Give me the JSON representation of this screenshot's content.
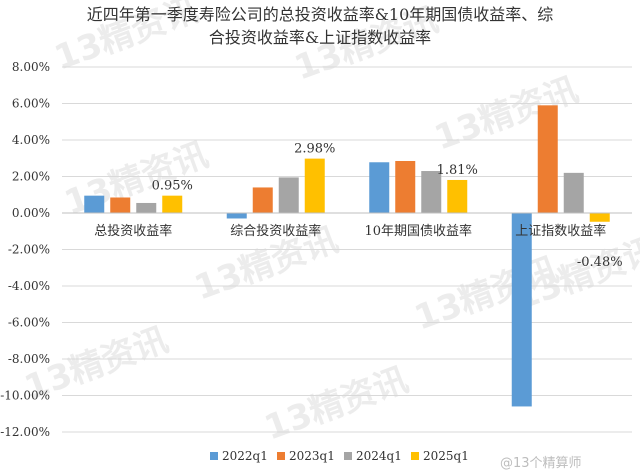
{
  "chart_data": {
    "type": "bar",
    "title": "近四年第一季度寿险公司的总投资收益率&10年期国债收益率、综合投资收益率&上证指数收益率",
    "title_lines": [
      "近四年第一季度寿险公司的总投资收益率&10年期国债收益率、综",
      "合投资收益率&上证指数收益率"
    ],
    "categories": [
      "总投资收益率",
      "综合投资收益率",
      "10年期国债收益率",
      "上证指数收益率"
    ],
    "series": [
      {
        "name": "2022q1",
        "color": "#5b9bd5",
        "values": [
          0.95,
          -0.3,
          2.78,
          -10.6
        ]
      },
      {
        "name": "2023q1",
        "color": "#ed7d31",
        "values": [
          0.85,
          1.4,
          2.85,
          5.9
        ]
      },
      {
        "name": "2024q1",
        "color": "#a5a5a5",
        "values": [
          0.55,
          1.95,
          2.3,
          2.2
        ]
      },
      {
        "name": "2025q1",
        "color": "#ffc000",
        "values": [
          0.95,
          2.98,
          1.81,
          -0.48
        ]
      }
    ],
    "data_labels": [
      {
        "category_index": 0,
        "series_index": 3,
        "text": "0.95%"
      },
      {
        "category_index": 1,
        "series_index": 3,
        "text": "2.98%"
      },
      {
        "category_index": 2,
        "series_index": 3,
        "text": "1.81%"
      },
      {
        "category_index": 3,
        "series_index": 3,
        "text": "-0.48%"
      }
    ],
    "y_ticks": [
      "8.00%",
      "6.00%",
      "4.00%",
      "2.00%",
      "0.00%",
      "-2.00%",
      "-4.00%",
      "-6.00%",
      "-8.00%",
      "-10.00%",
      "-12.00%"
    ],
    "ylim": [
      -12,
      8
    ],
    "y_step": 2,
    "grid": true,
    "legend_position": "bottom"
  },
  "watermark": {
    "text": "13精资讯",
    "color": "#ececec"
  },
  "credit": "@13个精算师"
}
